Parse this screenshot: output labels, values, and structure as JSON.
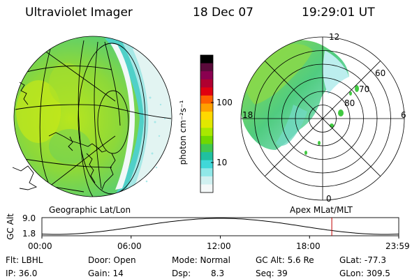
{
  "header": {
    "title": "Ultraviolet Imager",
    "date": "18 Dec 07",
    "time": "19:29:01 UT"
  },
  "left_panel": {
    "label": "Geographic Lat/Lon"
  },
  "right_panel": {
    "label": "Apex MLat/MLT",
    "mlt_labels": [
      "12",
      "18",
      "6",
      "0"
    ],
    "mlat_labels": [
      "60",
      "70",
      "80"
    ]
  },
  "colorbar": {
    "unit_label": "photon cm⁻²s⁻¹",
    "tick_labels": [
      "100",
      "10"
    ],
    "colors": [
      "#000000",
      "#5a0a3a",
      "#8a0050",
      "#b00030",
      "#e00010",
      "#ff6000",
      "#ffa000",
      "#ffd800",
      "#e0e800",
      "#a8e800",
      "#70d800",
      "#40c850",
      "#20c0a0",
      "#40d8d8",
      "#90e8e8",
      "#d0f0f0",
      "#f4f8f8"
    ]
  },
  "altitude_plot": {
    "ylabel": "GC Alt",
    "ymax_label": "9.0",
    "ymin_label": "1.8",
    "x_ticks": [
      "00:00",
      "06:00",
      "12:00",
      "18:00",
      "23:59"
    ],
    "marker_time": "19:29",
    "marker_color": "#c00000"
  },
  "info": {
    "flt": "Flt: LBHL",
    "ip": "IP: 36.0",
    "door": "Door: Open",
    "gain": "Gain: 14",
    "mode": "Mode: Normal",
    "dsp": "Dsp:",
    "dsp_val": "8.3",
    "gc_alt": "GC Alt: 5.6 Re",
    "seq": "Seq: 39",
    "glat": "GLat: -77.3",
    "glon": "GLon: 309.5"
  }
}
